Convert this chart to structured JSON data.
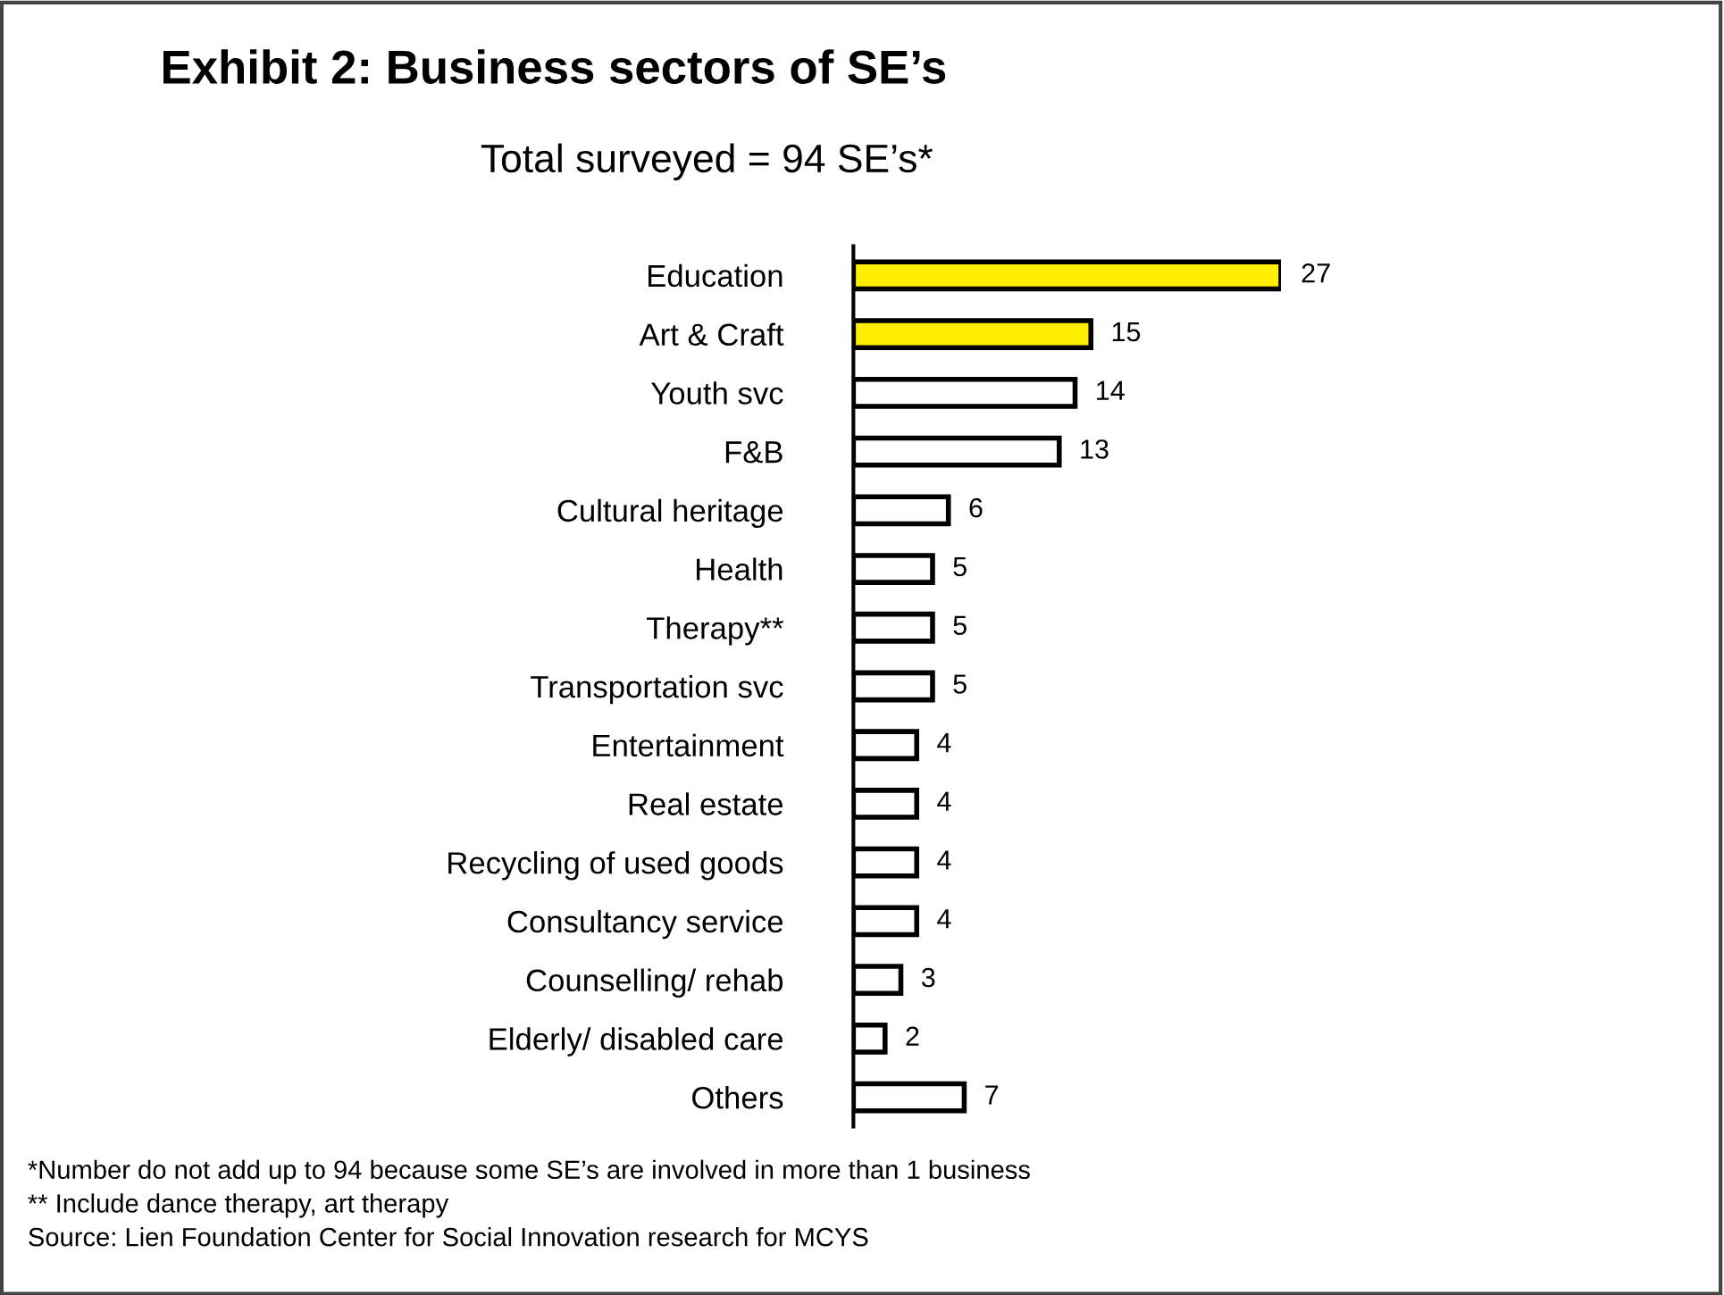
{
  "chart_data": {
    "type": "bar",
    "orientation": "horizontal",
    "title": "Exhibit 2: Business sectors of SE’s",
    "subtitle": "Total surveyed = 94 SE’s*",
    "categories": [
      "Education",
      "Art & Craft",
      "Youth svc",
      "F&B",
      "Cultural heritage",
      "Health",
      "Therapy**",
      "Transportation svc",
      "Entertainment",
      "Real estate",
      "Recycling of used goods",
      "Consultancy service",
      "Counselling/ rehab",
      "Elderly/ disabled care",
      "Others"
    ],
    "values": [
      27,
      15,
      14,
      13,
      6,
      5,
      5,
      5,
      4,
      4,
      4,
      4,
      3,
      2,
      7
    ],
    "colors": [
      "#ffee00",
      "#ffee00",
      "#ffffff",
      "#ffffff",
      "#ffffff",
      "#ffffff",
      "#ffffff",
      "#ffffff",
      "#ffffff",
      "#ffffff",
      "#ffffff",
      "#ffffff",
      "#ffffff",
      "#ffffff",
      "#ffffff"
    ],
    "data_labels": true,
    "grid": false,
    "legend": false,
    "annotations": [
      "*Number do not add up to 94 because some SE’s are involved in more than 1 business",
      "** Include dance therapy, art therapy",
      "Source: Lien Foundation Center for Social Innovation research for MCYS"
    ]
  }
}
